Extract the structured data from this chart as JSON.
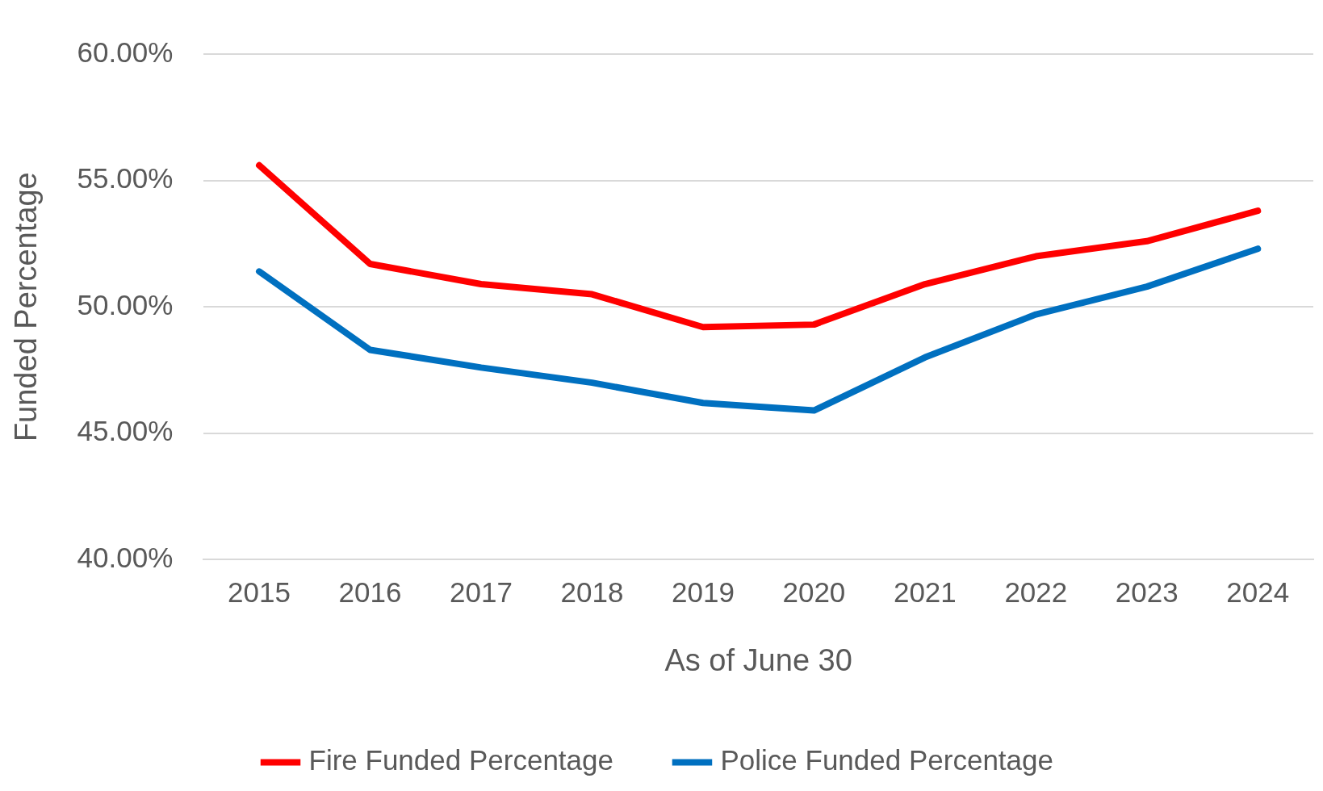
{
  "chart_data": {
    "type": "line",
    "xlabel": "As of June 30",
    "ylabel": "Funded Percentage",
    "categories": [
      "2015",
      "2016",
      "2017",
      "2018",
      "2019",
      "2020",
      "2021",
      "2022",
      "2023",
      "2024"
    ],
    "series": [
      {
        "name": "Fire Funded Percentage",
        "color": "#ff0000",
        "values": [
          55.6,
          51.7,
          50.9,
          50.5,
          49.2,
          49.3,
          50.9,
          52.0,
          52.6,
          53.8
        ]
      },
      {
        "name": "Police Funded Percentage",
        "color": "#0070c0",
        "values": [
          51.4,
          48.3,
          47.6,
          47.0,
          46.2,
          45.9,
          48.0,
          49.7,
          50.8,
          52.3
        ]
      }
    ],
    "ylim": [
      40,
      60
    ],
    "yticks": [
      {
        "value": 40,
        "label": "40.00%"
      },
      {
        "value": 45,
        "label": "45.00%"
      },
      {
        "value": 50,
        "label": "50.00%"
      },
      {
        "value": 55,
        "label": "55.00%"
      },
      {
        "value": 60,
        "label": "60.00%"
      }
    ],
    "grid": "y",
    "legend": "bottom",
    "marker": "none",
    "line_style": "solid"
  }
}
